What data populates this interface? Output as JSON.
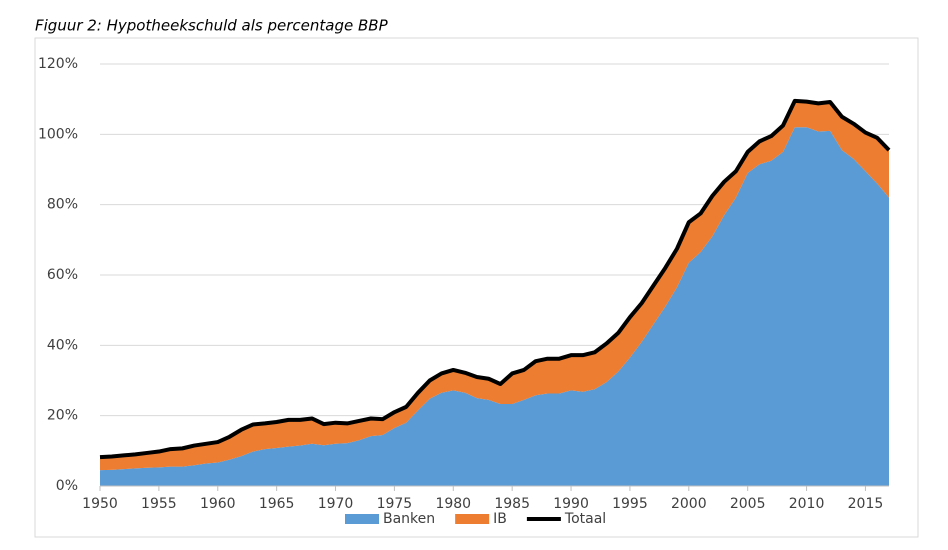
{
  "chart_data": {
    "type": "area",
    "stacked": true,
    "title": "Figuur 2: Hypotheekschuld als percentage BBP",
    "x": [
      1950,
      1951,
      1952,
      1953,
      1954,
      1955,
      1956,
      1957,
      1958,
      1959,
      1960,
      1961,
      1962,
      1963,
      1964,
      1965,
      1966,
      1967,
      1968,
      1969,
      1970,
      1971,
      1972,
      1973,
      1974,
      1975,
      1976,
      1977,
      1978,
      1979,
      1980,
      1981,
      1982,
      1983,
      1984,
      1985,
      1986,
      1987,
      1988,
      1989,
      1990,
      1991,
      1992,
      1993,
      1994,
      1995,
      1996,
      1997,
      1998,
      1999,
      2000,
      2001,
      2002,
      2003,
      2004,
      2005,
      2006,
      2007,
      2008,
      2009,
      2010,
      2011,
      2012,
      2013,
      2014,
      2015,
      2016,
      2017
    ],
    "series": [
      {
        "name": "Banken",
        "color": "#5b9bd5",
        "values": [
          4.5,
          4.6,
          4.8,
          5.0,
          5.2,
          5.3,
          5.5,
          5.5,
          5.9,
          6.4,
          6.7,
          7.5,
          8.5,
          9.8,
          10.5,
          10.8,
          11.2,
          11.5,
          12.0,
          11.6,
          12.0,
          12.2,
          13.0,
          14.2,
          14.5,
          16.5,
          18.0,
          21.5,
          24.8,
          26.5,
          27.2,
          26.5,
          25.0,
          24.5,
          23.3,
          23.3,
          24.5,
          25.8,
          26.3,
          26.3,
          27.2,
          26.8,
          27.5,
          29.5,
          32.5,
          36.5,
          41.0,
          46.0,
          51.0,
          56.5,
          63.5,
          66.5,
          71.0,
          77.0,
          82.0,
          89.0,
          91.5,
          92.5,
          95.0,
          102.0,
          102.0,
          100.8,
          101.0,
          95.5,
          93.0,
          89.5,
          86.0,
          82.0
        ]
      },
      {
        "name": "IB",
        "color": "#ed7d31",
        "values": [
          3.7,
          3.8,
          3.9,
          4.0,
          4.2,
          4.5,
          5.0,
          5.2,
          5.6,
          5.6,
          5.8,
          6.5,
          7.5,
          7.7,
          7.3,
          7.4,
          7.6,
          7.3,
          7.2,
          6.0,
          6.0,
          5.6,
          5.5,
          5.0,
          4.5,
          4.5,
          4.5,
          5.0,
          5.2,
          5.5,
          5.8,
          5.7,
          6.0,
          6.0,
          5.7,
          8.7,
          8.5,
          9.7,
          9.9,
          9.9,
          10.0,
          10.4,
          10.5,
          11.0,
          11.0,
          11.5,
          11.0,
          11.0,
          11.0,
          11.0,
          11.5,
          11.0,
          11.5,
          9.5,
          7.5,
          6.0,
          6.5,
          7.0,
          7.5,
          7.5,
          7.3,
          8.0,
          8.2,
          9.5,
          10.0,
          11.0,
          13.0,
          13.5
        ]
      },
      {
        "name": "Totaal",
        "color": "#000000",
        "type": "line",
        "values": [
          8.2,
          8.4,
          8.7,
          9.0,
          9.4,
          9.8,
          10.5,
          10.7,
          11.5,
          12.0,
          12.5,
          14.0,
          16.0,
          17.5,
          17.8,
          18.2,
          18.8,
          18.8,
          19.2,
          17.6,
          18.0,
          17.8,
          18.5,
          19.2,
          19.0,
          21.0,
          22.5,
          26.5,
          30.0,
          32.0,
          33.0,
          32.2,
          31.0,
          30.5,
          29.0,
          32.0,
          33.0,
          35.5,
          36.2,
          36.2,
          37.2,
          37.2,
          38.0,
          40.5,
          43.5,
          48.0,
          52.0,
          57.0,
          62.0,
          67.5,
          75.0,
          77.5,
          82.5,
          86.5,
          89.5,
          95.0,
          98.0,
          99.5,
          102.5,
          109.5,
          109.3,
          108.8,
          109.2,
          105.0,
          103.0,
          100.5,
          99.0,
          95.5
        ]
      }
    ],
    "xlim": [
      1950,
      2017
    ],
    "xticks": [
      1950,
      1955,
      1960,
      1965,
      1970,
      1975,
      1980,
      1985,
      1990,
      1995,
      2000,
      2005,
      2010,
      2015
    ],
    "ylim": [
      0,
      120
    ],
    "yticks": [
      {
        "value": 0,
        "label": "0%"
      },
      {
        "value": 20,
        "label": "20%"
      },
      {
        "value": 40,
        "label": "40%"
      },
      {
        "value": 60,
        "label": "60%"
      },
      {
        "value": 80,
        "label": "80%"
      },
      {
        "value": 100,
        "label": "100%"
      },
      {
        "value": 120,
        "label": "120%"
      }
    ],
    "grid": true,
    "legend": "bottom"
  }
}
